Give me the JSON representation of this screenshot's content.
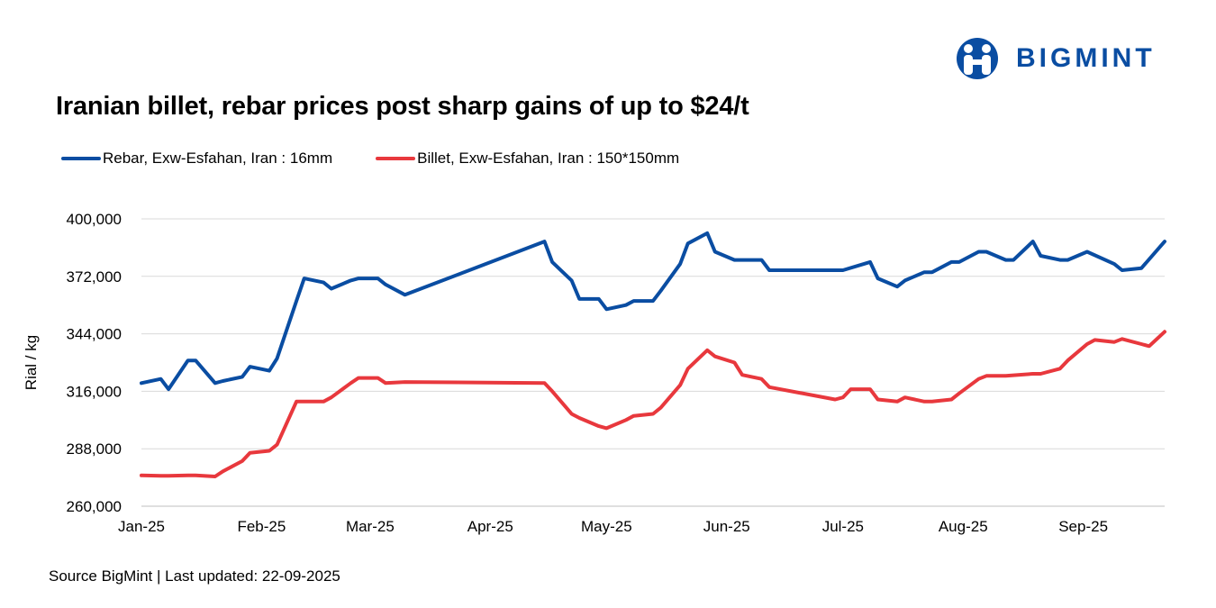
{
  "brand": {
    "name": "BIGMINT",
    "color": "#0a4da2",
    "icon": "bigmint-people-icon"
  },
  "source_text": "Source BigMint | Last updated: 22-09-2025",
  "chart_data": {
    "type": "line",
    "title": "Iranian billet, rebar prices post sharp gains of up to $24/t",
    "ylabel": "Rial / kg",
    "xlabel": "",
    "x_range": [
      "2025-01-01",
      "2025-09-22"
    ],
    "x_ticks": [
      "Jan-25",
      "Feb-25",
      "Mar-25",
      "Apr-25",
      "May-25",
      "Jun-25",
      "Jul-25",
      "Aug-25",
      "Sep-25"
    ],
    "x_tick_dates": [
      "2025-01-01",
      "2025-02-01",
      "2025-03-01",
      "2025-04-01",
      "2025-05-01",
      "2025-06-01",
      "2025-07-01",
      "2025-08-01",
      "2025-09-01"
    ],
    "ylim": [
      260000,
      400000
    ],
    "y_ticks": [
      260000,
      288000,
      316000,
      344000,
      372000,
      400000
    ],
    "grid": true,
    "legend_position": "top-left",
    "series": [
      {
        "name": "Rebar, Exw-Esfahan, Iran : 16mm",
        "color": "#0a4da2",
        "points": [
          [
            "2025-01-01",
            320000
          ],
          [
            "2025-01-06",
            322000
          ],
          [
            "2025-01-08",
            317000
          ],
          [
            "2025-01-13",
            331000
          ],
          [
            "2025-01-15",
            331000
          ],
          [
            "2025-01-20",
            320000
          ],
          [
            "2025-01-22",
            321000
          ],
          [
            "2025-01-27",
            323000
          ],
          [
            "2025-01-29",
            328000
          ],
          [
            "2025-02-03",
            326000
          ],
          [
            "2025-02-05",
            332000
          ],
          [
            "2025-02-10",
            360000
          ],
          [
            "2025-02-12",
            371000
          ],
          [
            "2025-02-17",
            369000
          ],
          [
            "2025-02-19",
            366000
          ],
          [
            "2025-02-24",
            370000
          ],
          [
            "2025-02-26",
            371000
          ],
          [
            "2025-03-03",
            371000
          ],
          [
            "2025-03-05",
            368000
          ],
          [
            "2025-03-10",
            363000
          ],
          [
            "2025-04-15",
            389000
          ],
          [
            "2025-04-17",
            379000
          ],
          [
            "2025-04-22",
            370000
          ],
          [
            "2025-04-24",
            361000
          ],
          [
            "2025-04-29",
            361000
          ],
          [
            "2025-05-01",
            356000
          ],
          [
            "2025-05-06",
            358000
          ],
          [
            "2025-05-08",
            360000
          ],
          [
            "2025-05-13",
            360000
          ],
          [
            "2025-05-15",
            365000
          ],
          [
            "2025-05-20",
            378000
          ],
          [
            "2025-05-22",
            388000
          ],
          [
            "2025-05-27",
            393000
          ],
          [
            "2025-05-29",
            384000
          ],
          [
            "2025-06-03",
            380000
          ],
          [
            "2025-06-10",
            380000
          ],
          [
            "2025-06-12",
            375000
          ],
          [
            "2025-07-01",
            375000
          ],
          [
            "2025-07-08",
            379000
          ],
          [
            "2025-07-10",
            371000
          ],
          [
            "2025-07-15",
            367000
          ],
          [
            "2025-07-17",
            370000
          ],
          [
            "2025-07-22",
            374000
          ],
          [
            "2025-07-24",
            374000
          ],
          [
            "2025-07-29",
            379000
          ],
          [
            "2025-07-31",
            379000
          ],
          [
            "2025-08-05",
            384000
          ],
          [
            "2025-08-07",
            384000
          ],
          [
            "2025-08-12",
            380000
          ],
          [
            "2025-08-14",
            380000
          ],
          [
            "2025-08-19",
            389000
          ],
          [
            "2025-08-21",
            382000
          ],
          [
            "2025-08-26",
            380000
          ],
          [
            "2025-08-28",
            380000
          ],
          [
            "2025-09-02",
            384000
          ],
          [
            "2025-09-09",
            378000
          ],
          [
            "2025-09-11",
            375000
          ],
          [
            "2025-09-16",
            376000
          ],
          [
            "2025-09-22",
            389000
          ]
        ]
      },
      {
        "name": "Billet, Exw-Esfahan, Iran : 150*150mm",
        "color": "#e8383d",
        "points": [
          [
            "2025-01-01",
            275000
          ],
          [
            "2025-01-06",
            274800
          ],
          [
            "2025-01-08",
            274800
          ],
          [
            "2025-01-13",
            275000
          ],
          [
            "2025-01-15",
            275000
          ],
          [
            "2025-01-20",
            274500
          ],
          [
            "2025-01-22",
            277000
          ],
          [
            "2025-01-27",
            282000
          ],
          [
            "2025-01-29",
            286000
          ],
          [
            "2025-02-03",
            287000
          ],
          [
            "2025-02-05",
            290000
          ],
          [
            "2025-02-10",
            311000
          ],
          [
            "2025-02-17",
            311000
          ],
          [
            "2025-02-19",
            313000
          ],
          [
            "2025-02-24",
            320000
          ],
          [
            "2025-02-26",
            322500
          ],
          [
            "2025-03-03",
            322500
          ],
          [
            "2025-03-05",
            320000
          ],
          [
            "2025-03-10",
            320500
          ],
          [
            "2025-04-15",
            320000
          ],
          [
            "2025-04-17",
            316000
          ],
          [
            "2025-04-22",
            305000
          ],
          [
            "2025-04-24",
            303000
          ],
          [
            "2025-04-29",
            299000
          ],
          [
            "2025-05-01",
            298000
          ],
          [
            "2025-05-06",
            302000
          ],
          [
            "2025-05-08",
            304000
          ],
          [
            "2025-05-13",
            305000
          ],
          [
            "2025-05-15",
            308000
          ],
          [
            "2025-05-20",
            319000
          ],
          [
            "2025-05-22",
            327000
          ],
          [
            "2025-05-27",
            336000
          ],
          [
            "2025-05-29",
            333000
          ],
          [
            "2025-06-03",
            330000
          ],
          [
            "2025-06-05",
            324000
          ],
          [
            "2025-06-10",
            322000
          ],
          [
            "2025-06-12",
            318000
          ],
          [
            "2025-06-29",
            312000
          ],
          [
            "2025-07-01",
            313000
          ],
          [
            "2025-07-03",
            317000
          ],
          [
            "2025-07-08",
            317000
          ],
          [
            "2025-07-10",
            312000
          ],
          [
            "2025-07-15",
            311000
          ],
          [
            "2025-07-17",
            313000
          ],
          [
            "2025-07-22",
            311000
          ],
          [
            "2025-07-24",
            311000
          ],
          [
            "2025-07-29",
            312000
          ],
          [
            "2025-07-31",
            315000
          ],
          [
            "2025-08-05",
            322000
          ],
          [
            "2025-08-07",
            323500
          ],
          [
            "2025-08-12",
            323500
          ],
          [
            "2025-08-19",
            324500
          ],
          [
            "2025-08-21",
            324500
          ],
          [
            "2025-08-26",
            327000
          ],
          [
            "2025-08-28",
            331000
          ],
          [
            "2025-09-02",
            339000
          ],
          [
            "2025-09-04",
            341000
          ],
          [
            "2025-09-09",
            340000
          ],
          [
            "2025-09-11",
            341500
          ],
          [
            "2025-09-16",
            339000
          ],
          [
            "2025-09-18",
            338000
          ],
          [
            "2025-09-22",
            345000
          ]
        ]
      }
    ]
  }
}
